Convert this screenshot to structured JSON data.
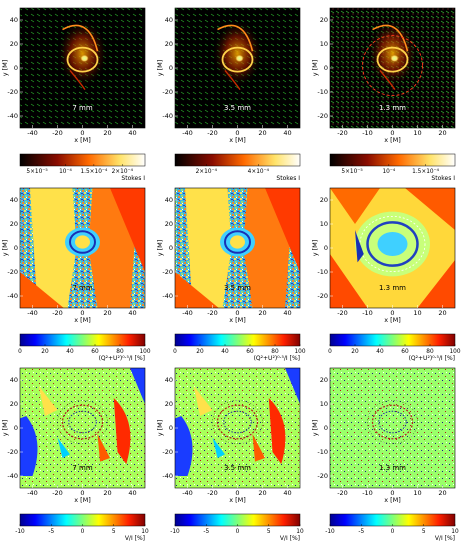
{
  "rows": [
    {
      "kind": "stokes-i",
      "colormap": "hot",
      "panels": [
        {
          "label": "7 mm",
          "x_ticks": [
            "-40",
            "-20",
            "0",
            "20",
            "40"
          ],
          "y_ticks": [
            "40",
            "20",
            "0",
            "-20",
            "-40"
          ],
          "xlabel": "x [M]",
          "ylabel": "y [M]"
        },
        {
          "label": "3.5 mm",
          "x_ticks": [
            "-40",
            "-20",
            "0",
            "20",
            "40"
          ],
          "y_ticks": [
            "40",
            "20",
            "0",
            "-20",
            "-40"
          ],
          "xlabel": "x [M]",
          "ylabel": "y [M]"
        },
        {
          "label": "1.3 mm",
          "x_ticks": [
            "-20",
            "-10",
            "0",
            "10",
            "20"
          ],
          "y_ticks": [
            "20",
            "10",
            "0",
            "-10",
            "-20"
          ],
          "xlabel": "x [M]",
          "ylabel": "y [M]"
        }
      ],
      "colorbars": [
        {
          "ticks": [
            "5×10⁻⁵",
            "10⁻⁴",
            "1.5×10⁻⁴",
            "2×10⁻⁴"
          ],
          "label": "Stokes I"
        },
        {
          "ticks": [
            "2×10⁻⁴",
            "4×10⁻⁴"
          ],
          "label": "Stokes I"
        },
        {
          "ticks": [
            "5×10⁻⁵",
            "10⁻⁴",
            "1.5×10⁻⁴"
          ],
          "label": "Stokes I"
        }
      ]
    },
    {
      "kind": "linear-polarization",
      "colormap": "jet",
      "panels": [
        {
          "label": "7 mm",
          "x_ticks": [
            "-40",
            "-20",
            "0",
            "20",
            "40"
          ],
          "y_ticks": [
            "40",
            "20",
            "0",
            "-20",
            "-40"
          ],
          "xlabel": "x [M]",
          "ylabel": "y [M]"
        },
        {
          "label": "3.5 mm",
          "x_ticks": [
            "-40",
            "-20",
            "0",
            "20",
            "40"
          ],
          "y_ticks": [
            "40",
            "20",
            "0",
            "-20",
            "-40"
          ],
          "xlabel": "x [M]",
          "ylabel": "y [M]"
        },
        {
          "label": "1.3 mm",
          "x_ticks": [
            "-20",
            "-10",
            "0",
            "10",
            "20"
          ],
          "y_ticks": [
            "20",
            "10",
            "0",
            "-10",
            "-20"
          ],
          "xlabel": "x [M]",
          "ylabel": "y [M]"
        }
      ],
      "colorbars": [
        {
          "ticks": [
            "0",
            "20",
            "40",
            "60",
            "80",
            "100"
          ],
          "label": "(Q²+U²)⁰·⁵/I [%]"
        },
        {
          "ticks": [
            "0",
            "20",
            "40",
            "60",
            "80",
            "100"
          ],
          "label": "(Q²+U²)⁰·⁵/I [%]"
        },
        {
          "ticks": [
            "0",
            "20",
            "40",
            "60",
            "80",
            "100"
          ],
          "label": "(Q²+U²)⁰·⁵/I [%]"
        }
      ]
    },
    {
      "kind": "circular-polarization",
      "colormap": "jet",
      "panels": [
        {
          "label": "7 mm",
          "x_ticks": [
            "-40",
            "-20",
            "0",
            "20",
            "40"
          ],
          "y_ticks": [
            "40",
            "20",
            "0",
            "-20",
            "-40"
          ],
          "xlabel": "x [M]",
          "ylabel": "y [M]"
        },
        {
          "label": "3.5 mm",
          "x_ticks": [
            "-40",
            "-20",
            "0",
            "20",
            "40"
          ],
          "y_ticks": [
            "40",
            "20",
            "0",
            "-20",
            "-40"
          ],
          "xlabel": "x [M]",
          "ylabel": "y [M]"
        },
        {
          "label": "1.3 mm",
          "x_ticks": [
            "-20",
            "-10",
            "0",
            "10",
            "20"
          ],
          "y_ticks": [
            "20",
            "10",
            "0",
            "-10",
            "-20"
          ],
          "xlabel": "x [M]",
          "ylabel": "y [M]"
        }
      ],
      "colorbars": [
        {
          "ticks": [
            "-10",
            "-5",
            "0",
            "5",
            "10"
          ],
          "label": "V/I [%]"
        },
        {
          "ticks": [
            "-10",
            "-5",
            "0",
            "5",
            "10"
          ],
          "label": "V/I [%]"
        },
        {
          "ticks": [
            "-10",
            "-5",
            "0",
            "5",
            "10"
          ],
          "label": "V/I [%]"
        }
      ]
    }
  ]
}
